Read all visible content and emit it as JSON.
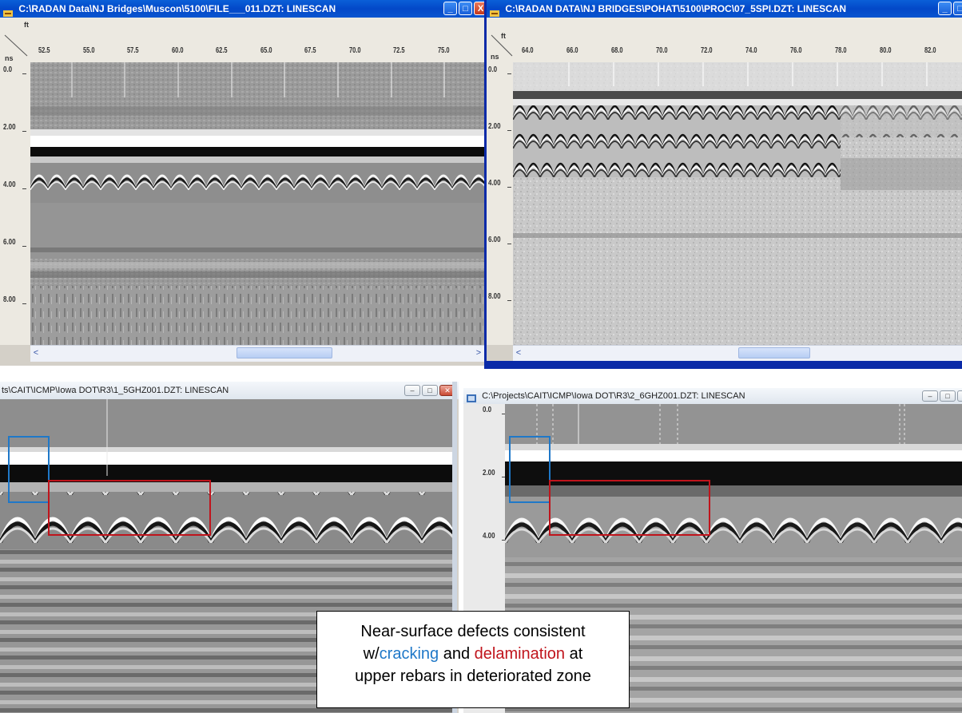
{
  "windows": {
    "top_left": {
      "title": "C:\\RADAN Data\\NJ Bridges\\Muscon\\5100\\FILE___011.DZT:  LINESCAN",
      "unit_distance": "ft",
      "unit_time": "ns",
      "x_ticks": [
        "52.5",
        "55.0",
        "57.5",
        "60.0",
        "62.5",
        "65.0",
        "67.5",
        "70.0",
        "72.5",
        "75.0"
      ],
      "y_ticks": [
        "0.0",
        "2.00",
        "4.00",
        "6.00",
        "8.00"
      ],
      "buttons": {
        "minimize": "_",
        "maximize": "□",
        "close": "X"
      },
      "scroll": {
        "left_arrow": "<",
        "right_arrow": ">"
      }
    },
    "top_right": {
      "title": "C:\\RADAN DATA\\NJ BRIDGES\\POHAT\\5100\\PROC\\07_5SPI.DZT:  LINESCAN",
      "unit_distance": "ft",
      "unit_time": "ns",
      "x_ticks": [
        "64.0",
        "66.0",
        "68.0",
        "70.0",
        "72.0",
        "74.0",
        "76.0",
        "78.0",
        "80.0",
        "82.0"
      ],
      "y_ticks": [
        "0.0",
        "2.00",
        "4.00",
        "6.00",
        "8.00"
      ],
      "buttons": {
        "minimize": "_",
        "maximize": "□"
      },
      "scroll": {
        "left_arrow": "<"
      }
    },
    "bottom_left": {
      "title": "ts\\CAIT\\ICMP\\Iowa DOT\\R3\\1_5GHZ001.DZT:  LINESCAN",
      "buttons": {
        "minimize": "–",
        "maximize": "□",
        "close": "✕"
      }
    },
    "bottom_right": {
      "title": "C:\\Projects\\CAIT\\ICMP\\Iowa DOT\\R3\\2_6GHZ001.DZT:  LINESCAN",
      "y_ticks": [
        "0.0",
        "2.00",
        "4.00"
      ],
      "buttons": {
        "minimize": "–",
        "maximize": "□",
        "close": "✕"
      }
    }
  },
  "callout": {
    "line1": "Near-surface defects consistent",
    "line2_prefix": "w/",
    "line2_cracking": "cracking",
    "line2_and": " and ",
    "line2_delamination": "delamination",
    "line2_suffix": " at",
    "line3": "upper rebars in deteriorated zone"
  },
  "colors": {
    "cracking": "#1f78c8",
    "delamination": "#c0141c",
    "xp_title": "#0348c8"
  }
}
